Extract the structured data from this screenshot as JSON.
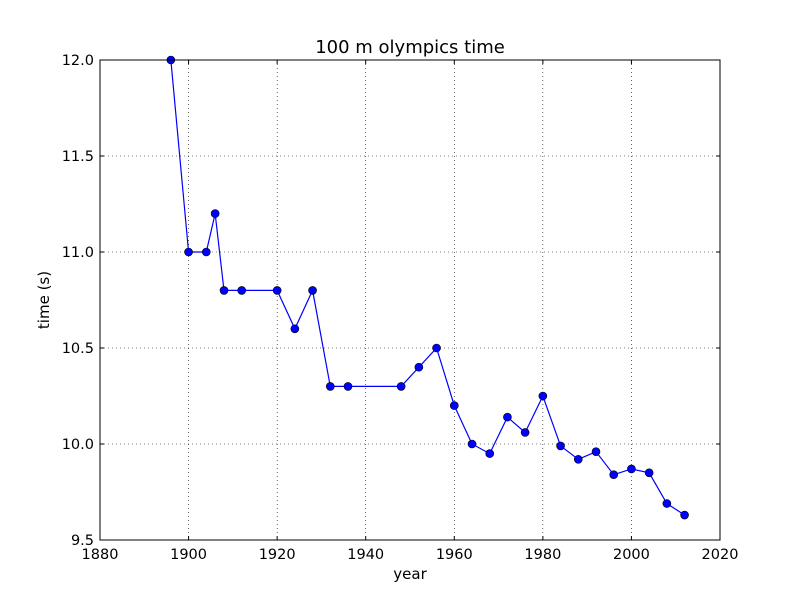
{
  "chart_data": {
    "type": "line",
    "title": "100 m olympics time",
    "xlabel": "year",
    "ylabel": "time (s)",
    "xlim": [
      1880,
      2020
    ],
    "ylim": [
      9.5,
      12.0
    ],
    "xticks": [
      "1880",
      "1900",
      "1920",
      "1940",
      "1960",
      "1980",
      "2000",
      "2020"
    ],
    "yticks": [
      "9.5",
      "10.0",
      "10.5",
      "11.0",
      "11.5",
      "12.0"
    ],
    "grid": true,
    "line_color": "#0000ff",
    "marker": "circle",
    "x": [
      1896,
      1900,
      1904,
      1906,
      1908,
      1912,
      1920,
      1924,
      1928,
      1932,
      1936,
      1948,
      1952,
      1956,
      1960,
      1964,
      1968,
      1972,
      1976,
      1980,
      1984,
      1988,
      1992,
      1996,
      2000,
      2004,
      2008,
      2012
    ],
    "y": [
      12.0,
      11.0,
      11.0,
      11.2,
      10.8,
      10.8,
      10.8,
      10.6,
      10.8,
      10.3,
      10.3,
      10.3,
      10.4,
      10.5,
      10.2,
      10.0,
      9.95,
      10.14,
      10.06,
      10.25,
      9.99,
      9.92,
      9.96,
      9.84,
      9.87,
      9.85,
      9.69,
      9.63
    ]
  }
}
